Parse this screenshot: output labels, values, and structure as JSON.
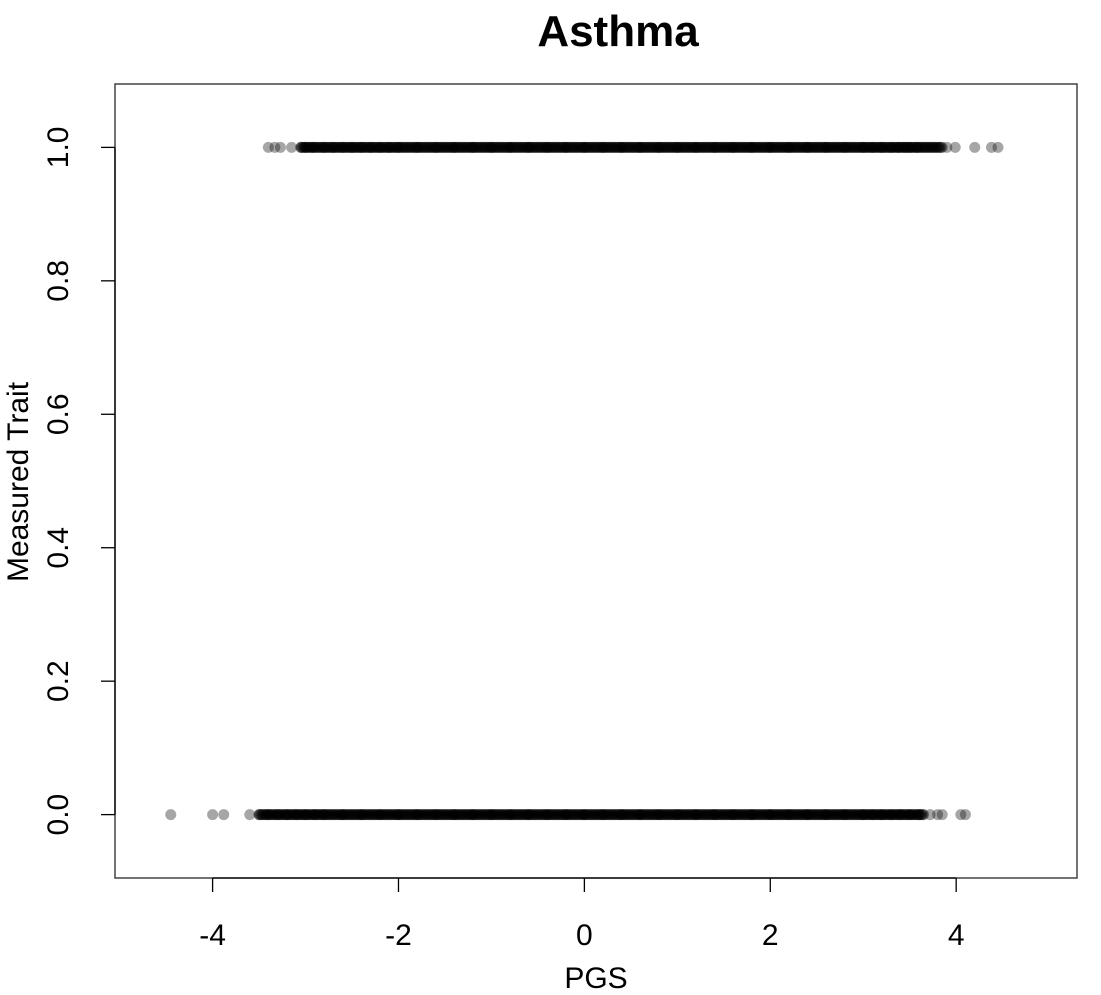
{
  "chart_data": {
    "type": "scatter",
    "title": "Asthma",
    "xlabel": "PGS",
    "ylabel": "Measured Trait",
    "xlim": [
      -5.05,
      5.3
    ],
    "ylim": [
      -0.095,
      1.095
    ],
    "x_ticks": [
      -4,
      -2,
      0,
      2,
      4
    ],
    "x_tick_labels": [
      "-4",
      "-2",
      "0",
      "2",
      "4"
    ],
    "y_ticks": [
      0.0,
      0.2,
      0.4,
      0.6,
      0.8,
      1.0
    ],
    "y_tick_labels": [
      "0.0",
      "0.2",
      "0.4",
      "0.6",
      "0.8",
      "1.0"
    ],
    "grid": false,
    "legend": "none",
    "point_color": "#000000",
    "series": [
      {
        "y": 1,
        "x": [
          -3.4,
          -3.33,
          -3.27,
          -3.15,
          -3.05,
          -3.0,
          -2.92,
          -2.8,
          -2.7,
          -2.6,
          -2.5,
          -2.4,
          -2.3,
          -2.2,
          -2.1,
          -2.0,
          -1.8,
          -1.6,
          -1.4,
          -1.2,
          -1.0,
          -0.8,
          -0.6,
          -0.4,
          -0.2,
          0.0,
          0.2,
          0.4,
          0.6,
          0.8,
          1.0,
          1.2,
          1.4,
          1.6,
          1.8,
          2.0,
          2.2,
          2.4,
          2.6,
          2.8,
          3.0,
          3.1,
          3.2,
          3.3,
          3.38,
          3.45,
          3.5,
          3.58,
          3.85,
          3.9,
          3.99,
          4.2,
          4.38,
          4.45
        ]
      },
      {
        "y": 0,
        "x": [
          -4.45,
          -4.0,
          -3.88,
          -3.6,
          -3.5,
          -3.4,
          -3.3,
          -3.2,
          -3.1,
          -3.0,
          -2.9,
          -2.8,
          -2.6,
          -2.4,
          -2.2,
          -2.0,
          -1.8,
          -1.6,
          -1.4,
          -1.2,
          -1.0,
          -0.8,
          -0.6,
          -0.4,
          -0.2,
          0.0,
          0.2,
          0.4,
          0.6,
          0.8,
          1.0,
          1.2,
          1.4,
          1.6,
          1.8,
          2.0,
          2.2,
          2.4,
          2.6,
          2.8,
          3.0,
          3.1,
          3.2,
          3.3,
          3.4,
          3.5,
          3.6,
          3.65,
          3.72,
          3.8,
          3.85,
          4.05,
          4.1
        ]
      }
    ]
  }
}
